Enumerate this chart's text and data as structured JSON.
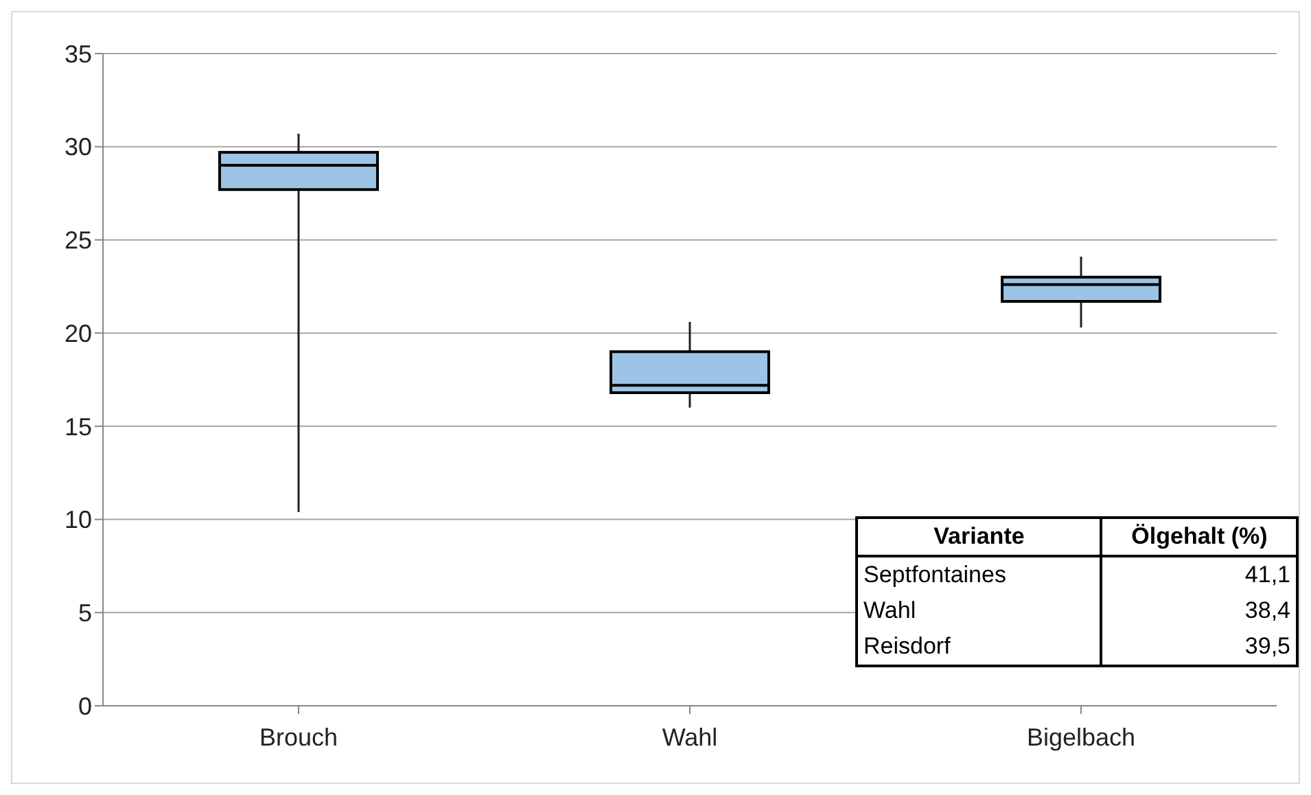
{
  "chart_data": {
    "type": "box",
    "categories": [
      "Brouch",
      "Wahl",
      "Bigelbach"
    ],
    "boxes": [
      {
        "low": 10.4,
        "q1": 27.7,
        "median": 29.0,
        "q3": 29.7,
        "high": 30.7
      },
      {
        "low": 16.0,
        "q1": 16.8,
        "median": 17.2,
        "q3": 19.0,
        "high": 20.6
      },
      {
        "low": 20.3,
        "q1": 21.7,
        "median": 22.6,
        "q3": 23.0,
        "high": 24.1
      }
    ],
    "color": "#9dc3e6",
    "ylim": [
      0,
      35
    ],
    "yticks": [
      0,
      5,
      10,
      15,
      20,
      25,
      30,
      35
    ],
    "grid": "y",
    "annotations": [
      "Variante",
      "Ölgehalt (%)",
      "Septfontaines",
      "41,1",
      "Wahl",
      "38,4",
      "Reisdorf",
      "39,5"
    ]
  }
}
